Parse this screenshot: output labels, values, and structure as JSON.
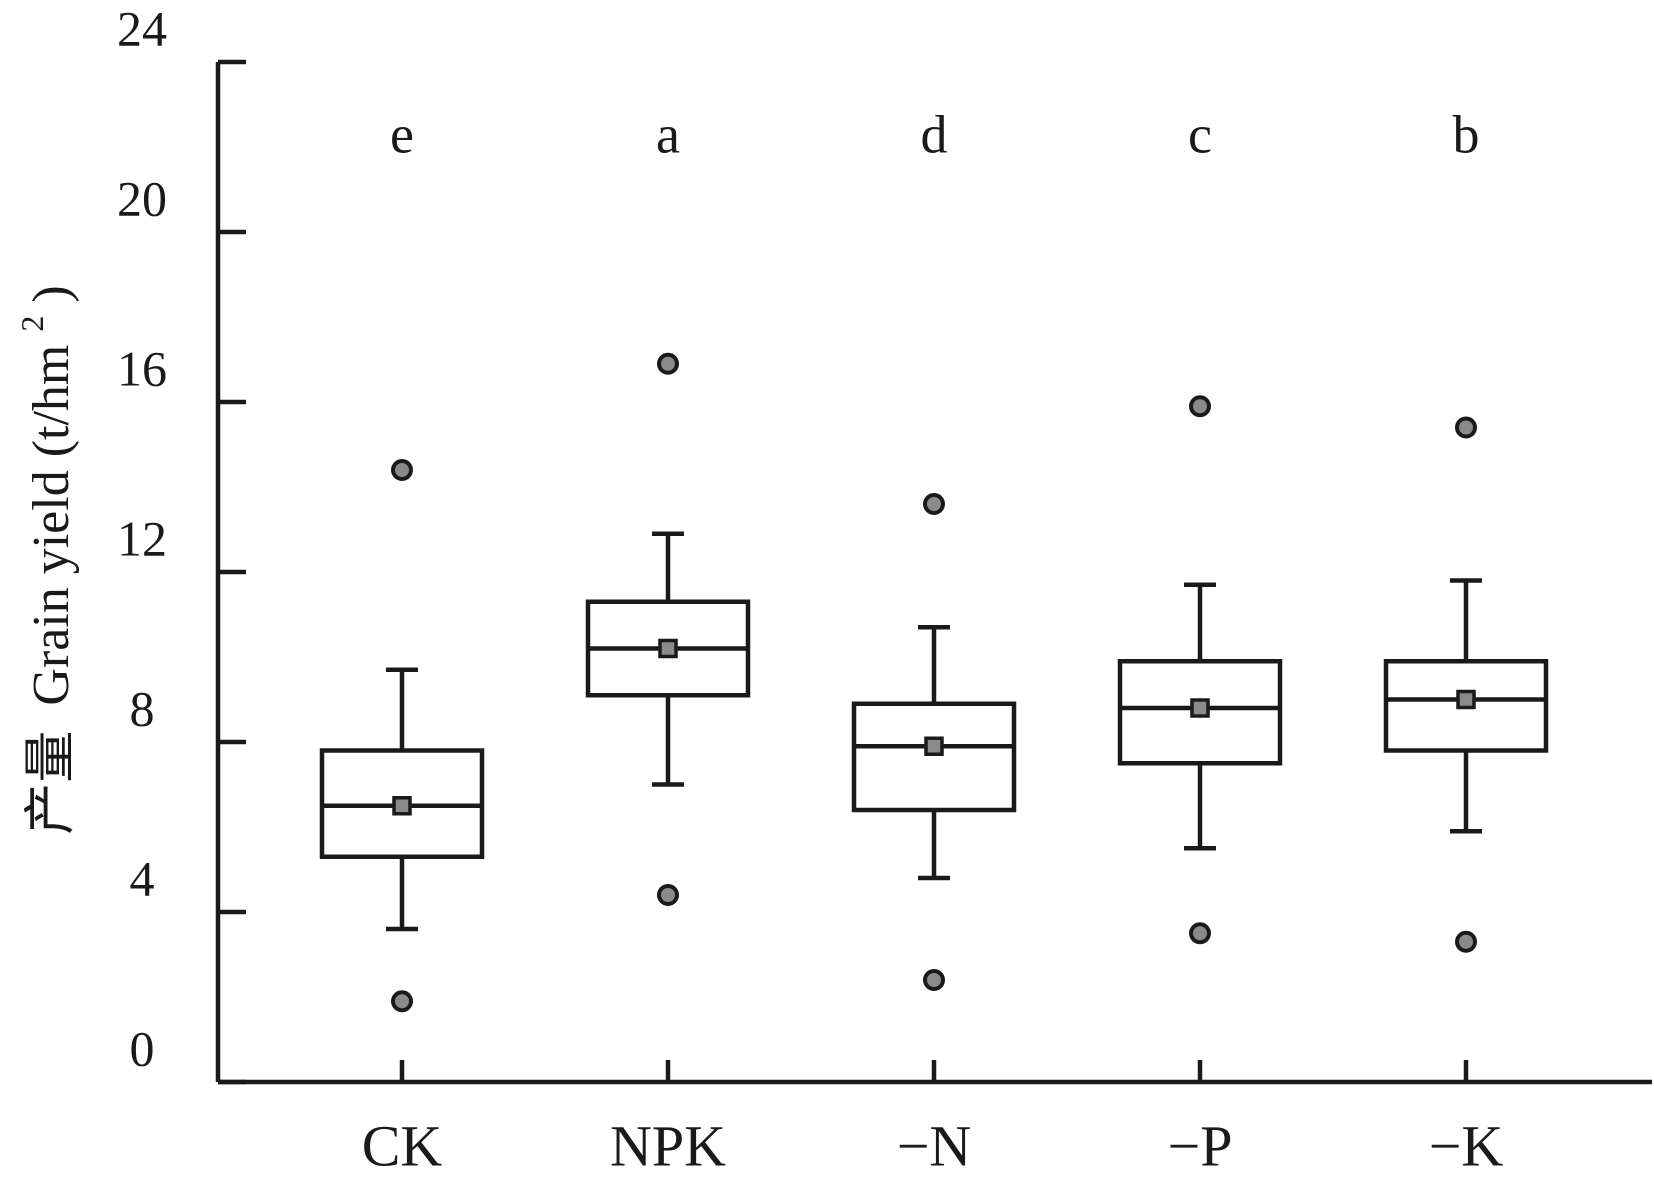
{
  "chart_data": {
    "type": "box",
    "ylabel": "产量 Grain yield (t/hm²)",
    "ylabel_cn": "产量",
    "ylabel_en": "Grain yield (t/hm",
    "ylabel_sup": "2",
    "ylabel_close": ")",
    "ylim": [
      0,
      24
    ],
    "yticks": [
      "0",
      "4",
      "8",
      "12",
      "16",
      "20",
      "24"
    ],
    "ytick_values": [
      0,
      4,
      8,
      12,
      16,
      20,
      24
    ],
    "categories": [
      "CK",
      "NPK",
      "−N",
      "−P",
      "−K"
    ],
    "significance_letters": [
      "e",
      "a",
      "d",
      "c",
      "b"
    ],
    "boxes": [
      {
        "category": "CK",
        "whisker_low": 3.6,
        "q1": 5.3,
        "median": 6.5,
        "q3": 7.8,
        "whisker_high": 9.7,
        "mean": 6.5,
        "outliers": [
          1.9,
          14.4
        ]
      },
      {
        "category": "NPK",
        "whisker_low": 7.0,
        "q1": 9.1,
        "median": 10.2,
        "q3": 11.3,
        "whisker_high": 12.9,
        "mean": 10.2,
        "outliers": [
          4.4,
          16.9
        ]
      },
      {
        "category": "−N",
        "whisker_low": 4.8,
        "q1": 6.4,
        "median": 7.9,
        "q3": 8.9,
        "whisker_high": 10.7,
        "mean": 7.9,
        "outliers": [
          2.4,
          13.6
        ]
      },
      {
        "category": "−P",
        "whisker_low": 5.5,
        "q1": 7.5,
        "median": 8.8,
        "q3": 9.9,
        "whisker_high": 11.7,
        "mean": 8.8,
        "outliers": [
          3.5,
          15.9
        ]
      },
      {
        "category": "−K",
        "whisker_low": 5.9,
        "q1": 7.8,
        "median": 9.0,
        "q3": 9.9,
        "whisker_high": 11.8,
        "mean": 9.0,
        "outliers": [
          3.3,
          15.4
        ]
      }
    ],
    "grid": false,
    "legend": "none"
  }
}
